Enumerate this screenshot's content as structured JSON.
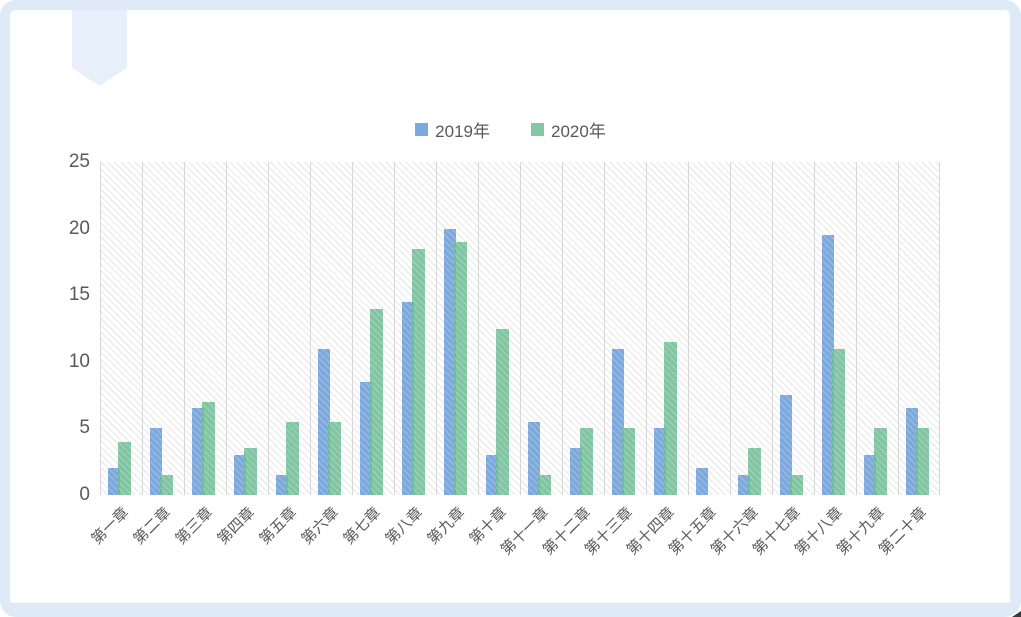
{
  "style": {
    "text_color": "#595959",
    "gridline_color": "#D7D7D7",
    "frame_color": "#DEEAF7",
    "ribbon_color": "#E7F0FA",
    "bar_blue": "#7CA8DC",
    "bar_green": "#84C6A5",
    "plot_hatch_color": "#EDEDED"
  },
  "chart_data": {
    "type": "bar",
    "title": "",
    "xlabel": "",
    "ylabel": "",
    "categories": [
      "第一章",
      "第二章",
      "第三章",
      "第四章",
      "第五章",
      "第六章",
      "第七章",
      "第八章",
      "第九章",
      "第十章",
      "第十一章",
      "第十二章",
      "第十三章",
      "第十四章",
      "第十五章",
      "第十六章",
      "第十七章",
      "第十八章",
      "第十九章",
      "第二十章"
    ],
    "series": [
      {
        "name": "2019年",
        "color": "#7CA8DC",
        "values": [
          2,
          5,
          6.5,
          3,
          1.5,
          11,
          8.5,
          14.5,
          20,
          3,
          5.5,
          3.5,
          11,
          5,
          2,
          1.5,
          7.5,
          19.5,
          3,
          6.5
        ]
      },
      {
        "name": "2020年",
        "color": "#84C6A5",
        "values": [
          4,
          1.5,
          7,
          3.5,
          5.5,
          5.5,
          14,
          18.5,
          19,
          12.5,
          1.5,
          5,
          5,
          11.5,
          0,
          3.5,
          1.5,
          11,
          5,
          5
        ]
      }
    ],
    "ylim": [
      0,
      25
    ],
    "yticks": [
      25,
      20,
      15,
      10,
      5,
      0
    ],
    "legend_position": "top-center",
    "grid": "vertical-only",
    "plot_background": "light-downward-diagonal-hatch",
    "x_label_rotation_deg": 45
  }
}
